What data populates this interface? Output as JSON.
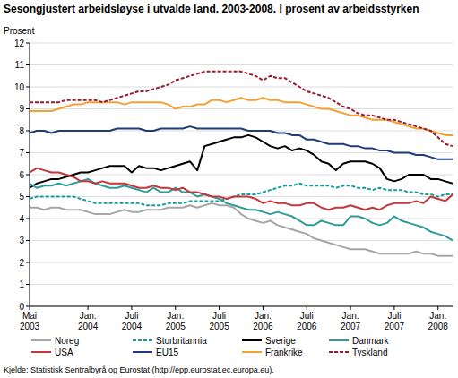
{
  "chart_data": {
    "type": "line",
    "title": "Sesongjustert arbeidsløyse i utvalde land. 2003-2008. I prosent av arbeidsstyrken",
    "y_label": "Prosent",
    "source": "Kjelde: Statistisk Sentralbyrå og Eurostat (http://epp.eurostat.ec.europa.eu).",
    "categories": [
      "Mai\n2003",
      null,
      null,
      null,
      null,
      null,
      null,
      null,
      "Jan.\n2004",
      null,
      null,
      null,
      null,
      null,
      "Juli\n2004",
      null,
      null,
      null,
      null,
      null,
      "Jan.\n2005",
      null,
      null,
      null,
      null,
      null,
      "Juli\n2005",
      null,
      null,
      null,
      null,
      null,
      "Jan.\n2006",
      null,
      null,
      null,
      null,
      null,
      "Juli\n2006",
      null,
      null,
      null,
      null,
      null,
      "Jan.\n2007",
      null,
      null,
      null,
      null,
      null,
      "Juli\n2007",
      null,
      null,
      null,
      null,
      null,
      "Jan.\n2008",
      null,
      null
    ],
    "ylim": [
      0,
      12
    ],
    "yticks": [
      0,
      1,
      2,
      3,
      4,
      5,
      6,
      7,
      8,
      9,
      10,
      11,
      12
    ],
    "grid": true,
    "legend": "bottom",
    "series": [
      {
        "name": "Noreg",
        "color": "#a6a6a6",
        "line_style": "solid",
        "values": [
          4.5,
          4.5,
          4.4,
          4.5,
          4.5,
          4.4,
          4.4,
          4.4,
          4.3,
          4.2,
          4.2,
          4.2,
          4.3,
          4.4,
          4.3,
          4.3,
          4.4,
          4.4,
          4.4,
          4.5,
          4.5,
          4.5,
          4.6,
          4.5,
          4.6,
          4.7,
          4.6,
          4.6,
          4.5,
          4.2,
          4.0,
          3.9,
          3.8,
          3.9,
          3.7,
          3.6,
          3.5,
          3.4,
          3.3,
          3.1,
          3.0,
          2.9,
          2.8,
          2.7,
          2.6,
          2.6,
          2.6,
          2.5,
          2.4,
          2.4,
          2.4,
          2.4,
          2.4,
          2.5,
          2.4,
          2.4,
          2.3,
          2.3,
          2.3
        ]
      },
      {
        "name": "Storbritannia",
        "color": "#1a9c9c",
        "line_style": "dashed",
        "values": [
          4.9,
          5.0,
          5.0,
          5.0,
          5.0,
          5.0,
          5.0,
          4.9,
          4.8,
          4.7,
          4.7,
          4.7,
          4.7,
          4.7,
          4.7,
          4.7,
          4.6,
          4.6,
          4.6,
          4.7,
          4.7,
          4.7,
          4.8,
          4.8,
          4.8,
          4.8,
          4.8,
          4.9,
          5.0,
          5.1,
          5.1,
          5.1,
          5.2,
          5.3,
          5.4,
          5.5,
          5.5,
          5.6,
          5.5,
          5.5,
          5.5,
          5.5,
          5.4,
          5.5,
          5.5,
          5.4,
          5.4,
          5.3,
          5.4,
          5.3,
          5.3,
          5.3,
          5.2,
          5.2,
          5.1,
          5.1,
          5.0,
          5.1,
          5.1
        ]
      },
      {
        "name": "Sverige",
        "color": "#000000",
        "line_style": "solid",
        "values": [
          5.4,
          5.6,
          5.7,
          5.8,
          5.8,
          5.9,
          6.0,
          6.1,
          6.1,
          6.2,
          6.3,
          6.4,
          6.4,
          6.4,
          6.1,
          6.4,
          6.3,
          6.3,
          6.2,
          6.3,
          6.4,
          6.5,
          6.6,
          6.2,
          7.3,
          7.4,
          7.5,
          7.6,
          7.7,
          7.7,
          7.8,
          7.7,
          7.5,
          7.3,
          7.2,
          7.3,
          7.1,
          7.2,
          7.1,
          6.9,
          6.6,
          6.5,
          6.2,
          6.5,
          6.6,
          6.6,
          6.6,
          6.5,
          6.3,
          5.8,
          5.7,
          5.8,
          6.0,
          6.0,
          6.0,
          5.8,
          5.8,
          5.7,
          5.6
        ]
      },
      {
        "name": "Danmark",
        "color": "#2e9b98",
        "line_style": "solid",
        "values": [
          5.6,
          5.4,
          5.5,
          5.5,
          5.6,
          5.5,
          5.6,
          5.7,
          5.8,
          5.6,
          5.5,
          5.4,
          5.4,
          5.5,
          5.4,
          5.3,
          5.2,
          5.4,
          5.2,
          5.2,
          5.4,
          5.2,
          5.2,
          5.0,
          5.1,
          5.0,
          4.9,
          4.7,
          4.6,
          4.5,
          4.4,
          4.4,
          4.3,
          4.2,
          4.3,
          4.2,
          4.1,
          3.9,
          3.7,
          3.7,
          3.9,
          3.8,
          3.7,
          3.7,
          4.1,
          4.1,
          4.0,
          3.8,
          3.7,
          3.8,
          4.1,
          3.9,
          3.8,
          3.7,
          3.6,
          3.4,
          3.3,
          3.2,
          3.0
        ]
      },
      {
        "name": "USA",
        "color": "#c4373a",
        "line_style": "solid",
        "values": [
          6.1,
          6.3,
          6.2,
          6.1,
          6.1,
          6.0,
          5.9,
          5.7,
          5.7,
          5.6,
          5.7,
          5.6,
          5.6,
          5.6,
          5.5,
          5.4,
          5.4,
          5.5,
          5.4,
          5.4,
          5.3,
          5.4,
          5.2,
          5.2,
          5.1,
          5.0,
          5.0,
          4.9,
          5.0,
          5.0,
          5.0,
          4.9,
          4.7,
          4.8,
          4.7,
          4.7,
          4.6,
          4.6,
          4.7,
          4.7,
          4.5,
          4.4,
          4.5,
          4.5,
          4.6,
          4.5,
          4.4,
          4.5,
          4.4,
          4.6,
          4.7,
          4.7,
          4.7,
          4.8,
          4.7,
          5.0,
          4.9,
          4.8,
          5.1
        ]
      },
      {
        "name": "EU15",
        "color": "#1f3b7a",
        "line_style": "solid",
        "values": [
          7.9,
          8.0,
          8.0,
          7.9,
          8.0,
          8.0,
          8.0,
          8.0,
          8.0,
          8.0,
          8.0,
          8.0,
          8.1,
          8.1,
          8.1,
          8.1,
          8.0,
          8.0,
          8.1,
          8.1,
          8.1,
          8.1,
          8.2,
          8.1,
          8.1,
          8.1,
          8.1,
          8.1,
          8.1,
          8.1,
          8.0,
          8.0,
          8.0,
          8.0,
          7.9,
          7.9,
          7.8,
          7.8,
          7.6,
          7.6,
          7.5,
          7.4,
          7.4,
          7.4,
          7.3,
          7.3,
          7.2,
          7.2,
          7.1,
          7.1,
          7.0,
          7.0,
          7.0,
          6.9,
          6.9,
          6.8,
          6.7,
          6.7,
          6.7
        ]
      },
      {
        "name": "Frankrike",
        "color": "#f5a033",
        "line_style": "solid",
        "values": [
          8.9,
          8.9,
          8.9,
          8.9,
          9.0,
          9.1,
          9.2,
          9.2,
          9.3,
          9.3,
          9.3,
          9.3,
          9.3,
          9.2,
          9.3,
          9.3,
          9.3,
          9.3,
          9.3,
          9.2,
          9.0,
          9.1,
          9.1,
          9.2,
          9.2,
          9.4,
          9.4,
          9.3,
          9.4,
          9.5,
          9.4,
          9.4,
          9.5,
          9.4,
          9.4,
          9.3,
          9.3,
          9.3,
          9.2,
          9.1,
          9.0,
          9.0,
          8.9,
          8.8,
          8.7,
          8.7,
          8.6,
          8.5,
          8.5,
          8.5,
          8.4,
          8.3,
          8.2,
          8.1,
          8.1,
          8.0,
          7.9,
          7.8,
          7.8
        ]
      },
      {
        "name": "Tyskland",
        "color": "#9b1c31",
        "line_style": "dashed",
        "values": [
          9.3,
          9.3,
          9.3,
          9.3,
          9.3,
          9.4,
          9.4,
          9.4,
          9.4,
          9.4,
          9.3,
          9.4,
          9.5,
          9.6,
          9.7,
          9.8,
          9.8,
          9.9,
          10.0,
          10.1,
          10.3,
          10.4,
          10.5,
          10.6,
          10.7,
          10.7,
          10.7,
          10.7,
          10.7,
          10.7,
          10.6,
          10.5,
          10.3,
          10.5,
          10.4,
          10.4,
          10.2,
          10.0,
          9.8,
          9.7,
          9.6,
          9.5,
          9.3,
          9.1,
          9.0,
          8.8,
          8.7,
          8.7,
          8.6,
          8.5,
          8.5,
          8.4,
          8.3,
          8.2,
          8.1,
          8.0,
          7.7,
          7.4,
          7.3
        ]
      }
    ]
  }
}
